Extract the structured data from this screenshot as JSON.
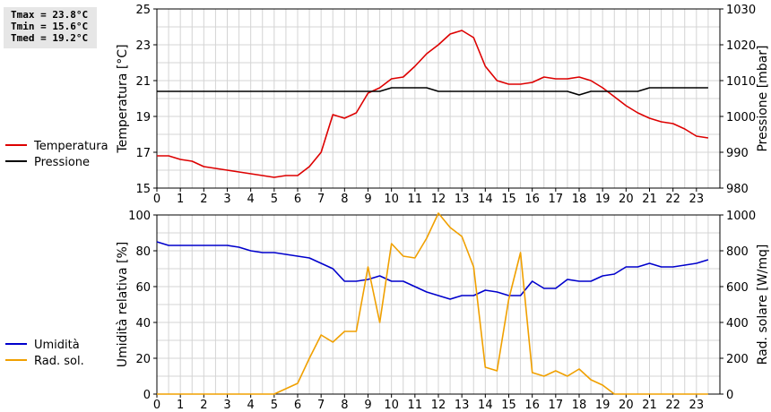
{
  "stats": {
    "tmax": "Tmax = 23.8°C",
    "tmin": "Tmin = 15.6°C",
    "tmed": "Tmed = 19.2°C"
  },
  "chart_data": [
    {
      "type": "line",
      "xlim": [
        0,
        24
      ],
      "x_ticks": [
        "0",
        "1",
        "2",
        "3",
        "4",
        "5",
        "6",
        "7",
        "8",
        "9",
        "10",
        "11",
        "12",
        "13",
        "14",
        "15",
        "16",
        "17",
        "18",
        "19",
        "20",
        "21",
        "22",
        "23"
      ],
      "ylabel_left": "Temperatura [°C]",
      "ylim_left": [
        15,
        25
      ],
      "y_ticks_left": [
        "15",
        "17",
        "19",
        "21",
        "23",
        "25"
      ],
      "ylabel_right": "Pressione [mbar]",
      "ylim_right": [
        980,
        1030
      ],
      "y_ticks_right": [
        "980",
        "990",
        "1000",
        "1010",
        "1020",
        "1030"
      ],
      "grid": true,
      "legend_position": "left",
      "series": [
        {
          "name": "Temperatura",
          "axis": "left",
          "color": "#dd0000",
          "x": [
            0,
            0.5,
            1,
            1.5,
            2,
            2.5,
            3,
            3.5,
            4,
            4.5,
            5,
            5.5,
            6,
            6.5,
            7,
            7.5,
            8,
            8.5,
            9,
            9.5,
            10,
            10.5,
            11,
            11.5,
            12,
            12.5,
            13,
            13.5,
            14,
            14.5,
            15,
            15.5,
            16,
            16.5,
            17,
            17.5,
            18,
            18.5,
            19,
            19.5,
            20,
            20.5,
            21,
            21.5,
            22,
            22.5,
            23,
            23.5
          ],
          "values": [
            16.8,
            16.8,
            16.6,
            16.5,
            16.2,
            16.1,
            16.0,
            15.9,
            15.8,
            15.7,
            15.6,
            15.7,
            15.7,
            16.2,
            17.0,
            19.1,
            18.9,
            19.2,
            20.3,
            20.6,
            21.1,
            21.2,
            21.8,
            22.5,
            23.0,
            23.6,
            23.8,
            23.4,
            21.8,
            21.0,
            20.8,
            20.8,
            20.9,
            21.2,
            21.1,
            21.1,
            21.2,
            21.0,
            20.6,
            20.1,
            19.6,
            19.2,
            18.9,
            18.7,
            18.6,
            18.3,
            17.9,
            17.8
          ]
        },
        {
          "name": "Pressione",
          "axis": "right",
          "color": "#000000",
          "x": [
            0,
            0.5,
            1,
            1.5,
            2,
            2.5,
            3,
            3.5,
            4,
            4.5,
            5,
            5.5,
            6,
            6.5,
            7,
            7.5,
            8,
            8.5,
            9,
            9.5,
            10,
            10.5,
            11,
            11.5,
            12,
            12.5,
            13,
            13.5,
            14,
            14.5,
            15,
            15.5,
            16,
            16.5,
            17,
            17.5,
            18,
            18.5,
            19,
            19.5,
            20,
            20.5,
            21,
            21.5,
            22,
            22.5,
            23,
            23.5
          ],
          "values": [
            1007,
            1007,
            1007,
            1007,
            1007,
            1007,
            1007,
            1007,
            1007,
            1007,
            1007,
            1007,
            1007,
            1007,
            1007,
            1007,
            1007,
            1007,
            1007,
            1007,
            1008,
            1008,
            1008,
            1008,
            1007,
            1007,
            1007,
            1007,
            1007,
            1007,
            1007,
            1007,
            1007,
            1007,
            1007,
            1007,
            1006,
            1007,
            1007,
            1007,
            1007,
            1007,
            1008,
            1008,
            1008,
            1008,
            1008,
            1008
          ]
        }
      ]
    },
    {
      "type": "line",
      "xlim": [
        0,
        24
      ],
      "x_ticks": [
        "0",
        "1",
        "2",
        "3",
        "4",
        "5",
        "6",
        "7",
        "8",
        "9",
        "10",
        "11",
        "12",
        "13",
        "14",
        "15",
        "16",
        "17",
        "18",
        "19",
        "20",
        "21",
        "22",
        "23"
      ],
      "ylabel_left": "Umidità relativa [%]",
      "ylim_left": [
        0,
        100
      ],
      "y_ticks_left": [
        "0",
        "20",
        "40",
        "60",
        "80",
        "100"
      ],
      "ylabel_right": "Rad. solare [W/mq]",
      "ylim_right": [
        0,
        1000
      ],
      "y_ticks_right": [
        "0",
        "200",
        "400",
        "600",
        "800",
        "1000"
      ],
      "grid": true,
      "legend_position": "left",
      "series": [
        {
          "name": "Umidità",
          "axis": "left",
          "color": "#0000cc",
          "x": [
            0,
            0.5,
            1,
            1.5,
            2,
            2.5,
            3,
            3.5,
            4,
            4.5,
            5,
            5.5,
            6,
            6.5,
            7,
            7.5,
            8,
            8.5,
            9,
            9.5,
            10,
            10.5,
            11,
            11.5,
            12,
            12.5,
            13,
            13.5,
            14,
            14.5,
            15,
            15.5,
            16,
            16.5,
            17,
            17.5,
            18,
            18.5,
            19,
            19.5,
            20,
            20.5,
            21,
            21.5,
            22,
            22.5,
            23,
            23.5
          ],
          "values": [
            85,
            83,
            83,
            83,
            83,
            83,
            83,
            82,
            80,
            79,
            79,
            78,
            77,
            76,
            73,
            70,
            63,
            63,
            64,
            66,
            63,
            63,
            60,
            57,
            55,
            53,
            55,
            55,
            58,
            57,
            55,
            55,
            63,
            59,
            59,
            64,
            63,
            63,
            66,
            67,
            71,
            71,
            73,
            71,
            71,
            72,
            73,
            75
          ]
        },
        {
          "name": "Rad. sol.",
          "axis": "right",
          "color": "#f0a000",
          "x": [
            0,
            0.5,
            1,
            1.5,
            2,
            2.5,
            3,
            3.5,
            4,
            4.5,
            5,
            5.5,
            6,
            6.5,
            7,
            7.5,
            8,
            8.5,
            9,
            9.5,
            10,
            10.5,
            11,
            11.5,
            12,
            12.5,
            13,
            13.5,
            14,
            14.5,
            15,
            15.5,
            16,
            16.5,
            17,
            17.5,
            18,
            18.5,
            19,
            19.5,
            20,
            20.5,
            21,
            21.5,
            22,
            22.5,
            23,
            23.5
          ],
          "values": [
            0,
            0,
            0,
            0,
            0,
            0,
            0,
            0,
            0,
            0,
            0,
            30,
            60,
            200,
            330,
            290,
            350,
            350,
            710,
            400,
            840,
            770,
            760,
            870,
            1010,
            930,
            880,
            710,
            150,
            130,
            530,
            790,
            120,
            100,
            130,
            100,
            140,
            80,
            50,
            0,
            0,
            0,
            0,
            0,
            0,
            0,
            0,
            0
          ]
        }
      ]
    }
  ]
}
